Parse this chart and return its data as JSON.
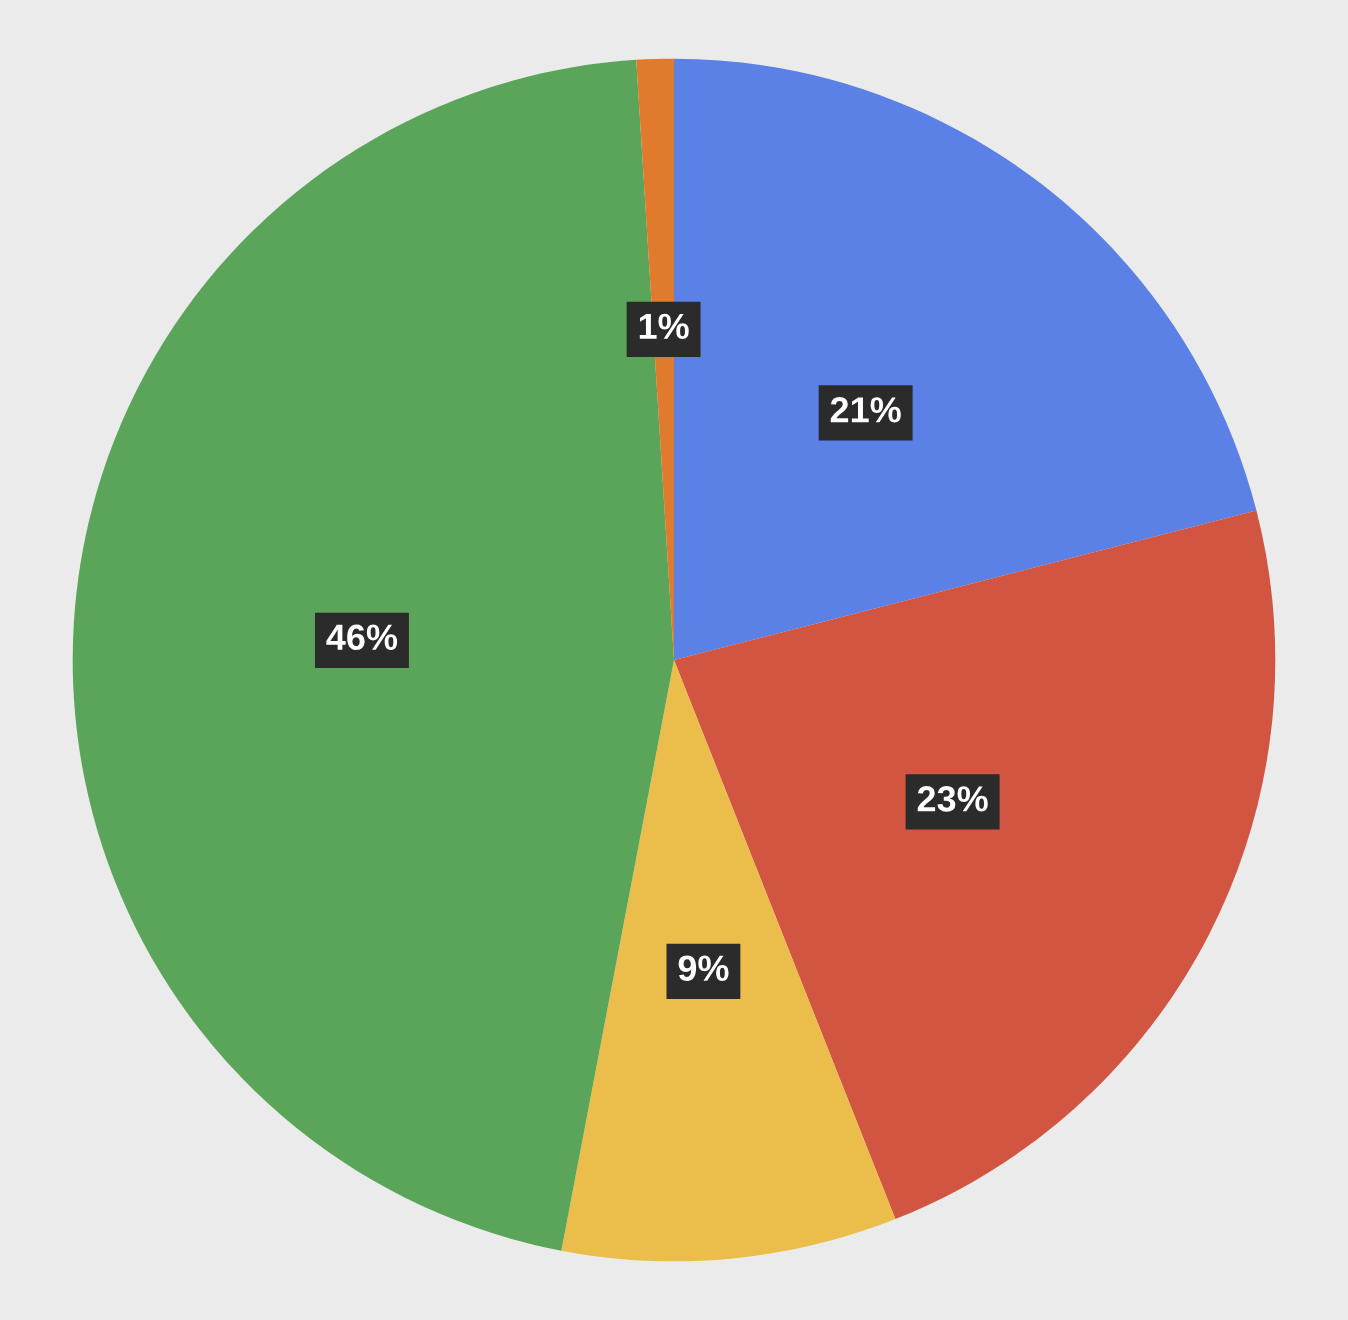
{
  "chart_data": {
    "type": "pie",
    "categories": [
      null,
      null,
      null,
      null,
      null
    ],
    "values": [
      21,
      23,
      9,
      46,
      1
    ],
    "colors": [
      "#5b80e6",
      "#d15541",
      "#ebbe4b",
      "#5ba55b",
      "#e07a2c"
    ],
    "value_labels": [
      "21%",
      "23%",
      "9%",
      "46%",
      "1%"
    ]
  }
}
